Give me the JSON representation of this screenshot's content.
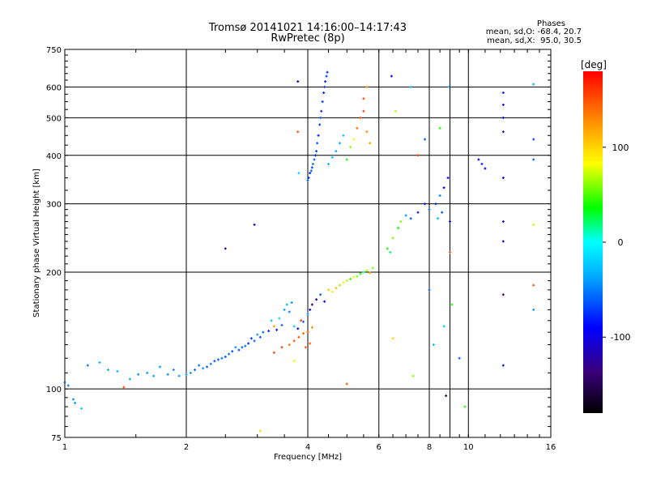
{
  "header": {
    "title_line1": "Tromsø 20141021 14:16:00–14:17:43",
    "title_line2": "RwPretec (8p)"
  },
  "phases": {
    "heading": "Phases",
    "line_o": "mean, sd,O: -68.4, 20.7",
    "line_x": "mean, sd,X:  95.0, 30.5"
  },
  "colorbar": {
    "label": "[deg]",
    "ticks": [
      {
        "label": "100",
        "value": 100
      },
      {
        "label": "0",
        "value": 0
      },
      {
        "label": "-100",
        "value": -100
      }
    ],
    "range": [
      -180,
      180
    ]
  },
  "chart_data": {
    "type": "scatter",
    "title": "Tromsø 20141021 14:16:00–14:17:43",
    "subtitle": "RwPretec (8p)",
    "xlabel": "Frequency [MHz]",
    "ylabel": "Stationary phase Virtual Height [km]",
    "x_scale": "log",
    "y_scale": "log",
    "xlim": [
      1,
      16
    ],
    "ylim": [
      75,
      750
    ],
    "x_ticks": [
      {
        "label": "1",
        "value": 1
      },
      {
        "label": "2",
        "value": 2
      },
      {
        "label": "4",
        "value": 4
      },
      {
        "label": "6",
        "value": 6
      },
      {
        "label": "8",
        "value": 8
      },
      {
        "label": "10",
        "value": 10
      },
      {
        "label": "16",
        "value": 16
      }
    ],
    "y_ticks": [
      {
        "label": "75",
        "value": 75
      },
      {
        "label": "100",
        "value": 100
      },
      {
        "label": "200",
        "value": 200
      },
      {
        "label": "300",
        "value": 300
      },
      {
        "label": "400",
        "value": 400
      },
      {
        "label": "500",
        "value": 500
      },
      {
        "label": "600",
        "value": 600
      },
      {
        "label": "750",
        "value": 750
      }
    ],
    "grid": true,
    "color_by": "phase [deg]",
    "points": [
      [
        1.0,
        104,
        -40
      ],
      [
        1.02,
        102,
        -50
      ],
      [
        1.05,
        94,
        -45
      ],
      [
        1.06,
        92,
        -40
      ],
      [
        1.1,
        89,
        -20
      ],
      [
        1.14,
        115,
        -55
      ],
      [
        1.22,
        117,
        -30
      ],
      [
        1.28,
        112,
        -35
      ],
      [
        1.35,
        111,
        -30
      ],
      [
        1.4,
        101,
        150
      ],
      [
        1.45,
        106,
        -35
      ],
      [
        1.52,
        109,
        -40
      ],
      [
        1.6,
        110,
        -45
      ],
      [
        1.66,
        108,
        -38
      ],
      [
        1.72,
        114,
        -40
      ],
      [
        1.8,
        109,
        -42
      ],
      [
        1.86,
        112,
        -50
      ],
      [
        1.92,
        108,
        -40
      ],
      [
        2.0,
        109,
        -40
      ],
      [
        2.05,
        110,
        -45
      ],
      [
        2.1,
        112,
        -60
      ],
      [
        2.15,
        115,
        -55
      ],
      [
        2.2,
        113,
        -40
      ],
      [
        2.25,
        114,
        -60
      ],
      [
        2.3,
        116,
        -50
      ],
      [
        2.35,
        118,
        -65
      ],
      [
        2.4,
        119,
        -60
      ],
      [
        2.45,
        120,
        -50
      ],
      [
        2.5,
        121,
        -62
      ],
      [
        2.55,
        123,
        -55
      ],
      [
        2.6,
        125,
        -65
      ],
      [
        2.65,
        128,
        -45
      ],
      [
        2.7,
        126,
        -70
      ],
      [
        2.75,
        128,
        -60
      ],
      [
        2.8,
        129,
        -55
      ],
      [
        2.85,
        131,
        -75
      ],
      [
        2.9,
        135,
        -70
      ],
      [
        2.95,
        133,
        -60
      ],
      [
        3.0,
        138,
        -40
      ],
      [
        3.05,
        136,
        -65
      ],
      [
        3.1,
        140,
        -55
      ],
      [
        3.2,
        141,
        -80
      ],
      [
        3.25,
        150,
        -30
      ],
      [
        3.3,
        145,
        120
      ],
      [
        3.35,
        142,
        -100
      ],
      [
        3.4,
        152,
        -20
      ],
      [
        3.45,
        146,
        -60
      ],
      [
        3.5,
        160,
        -40
      ],
      [
        3.55,
        165,
        -30
      ],
      [
        3.6,
        158,
        -50
      ],
      [
        3.65,
        167,
        -45
      ],
      [
        3.7,
        145,
        -20
      ],
      [
        3.78,
        143,
        -100
      ],
      [
        3.85,
        150,
        160
      ],
      [
        3.9,
        149,
        -60
      ],
      [
        4.0,
        156,
        -40
      ],
      [
        4.05,
        160,
        -110
      ],
      [
        4.1,
        165,
        -140
      ],
      [
        4.2,
        170,
        -120
      ],
      [
        4.3,
        175,
        -60
      ],
      [
        4.4,
        168,
        -100
      ],
      [
        4.5,
        180,
        100
      ],
      [
        4.6,
        178,
        90
      ],
      [
        4.7,
        182,
        110
      ],
      [
        4.8,
        185,
        60
      ],
      [
        4.9,
        188,
        90
      ],
      [
        5.0,
        190,
        70
      ],
      [
        5.1,
        192,
        50
      ],
      [
        5.2,
        194,
        80
      ],
      [
        5.3,
        195,
        60
      ],
      [
        5.4,
        198,
        40
      ],
      [
        5.5,
        200,
        20
      ],
      [
        5.6,
        202,
        70
      ],
      [
        5.7,
        199,
        110
      ],
      [
        5.8,
        205,
        60
      ],
      [
        3.3,
        124,
        150
      ],
      [
        3.45,
        128,
        160
      ],
      [
        3.6,
        130,
        140
      ],
      [
        3.7,
        133,
        150
      ],
      [
        3.8,
        136,
        155
      ],
      [
        3.9,
        139,
        140
      ],
      [
        4.0,
        140,
        150
      ],
      [
        4.1,
        144,
        130
      ],
      [
        3.95,
        128,
        150
      ],
      [
        4.05,
        131,
        145
      ],
      [
        4.0,
        345,
        -60
      ],
      [
        4.02,
        350,
        -70
      ],
      [
        4.05,
        360,
        -80
      ],
      [
        4.08,
        365,
        -60
      ],
      [
        4.1,
        372,
        -70
      ],
      [
        4.12,
        380,
        -50
      ],
      [
        4.15,
        390,
        -60
      ],
      [
        4.18,
        400,
        -80
      ],
      [
        4.2,
        410,
        -70
      ],
      [
        4.22,
        430,
        -60
      ],
      [
        4.25,
        450,
        -80
      ],
      [
        4.28,
        480,
        -70
      ],
      [
        4.3,
        500,
        -60
      ],
      [
        4.32,
        520,
        -80
      ],
      [
        4.35,
        550,
        -70
      ],
      [
        4.38,
        580,
        -80
      ],
      [
        4.4,
        600,
        -70
      ],
      [
        4.42,
        620,
        -80
      ],
      [
        4.45,
        640,
        -70
      ],
      [
        4.47,
        655,
        -80
      ],
      [
        4.5,
        380,
        -30
      ],
      [
        4.6,
        395,
        -20
      ],
      [
        4.7,
        410,
        -40
      ],
      [
        4.8,
        430,
        -35
      ],
      [
        4.9,
        450,
        -25
      ],
      [
        5.0,
        390,
        40
      ],
      [
        5.1,
        420,
        60
      ],
      [
        5.2,
        440,
        80
      ],
      [
        5.3,
        470,
        140
      ],
      [
        5.4,
        500,
        150
      ],
      [
        5.5,
        520,
        160
      ],
      [
        5.6,
        460,
        130
      ],
      [
        5.7,
        430,
        120
      ],
      [
        5.5,
        560,
        150
      ],
      [
        5.6,
        600,
        130
      ],
      [
        6.3,
        230,
        40
      ],
      [
        6.5,
        245,
        60
      ],
      [
        6.7,
        260,
        40
      ],
      [
        6.4,
        225,
        20
      ],
      [
        6.8,
        270,
        60
      ],
      [
        7.0,
        280,
        -40
      ],
      [
        7.2,
        275,
        -60
      ],
      [
        7.5,
        285,
        -80
      ],
      [
        7.8,
        300,
        -100
      ],
      [
        8.0,
        290,
        -60
      ],
      [
        8.3,
        300,
        -80
      ],
      [
        8.5,
        315,
        -50
      ],
      [
        8.7,
        330,
        -100
      ],
      [
        8.9,
        350,
        -90
      ],
      [
        9.0,
        270,
        -100
      ],
      [
        8.4,
        275,
        -30
      ],
      [
        8.6,
        285,
        -60
      ],
      [
        10.6,
        390,
        -110
      ],
      [
        10.8,
        380,
        -80
      ],
      [
        11.0,
        370,
        -100
      ],
      [
        12.2,
        500,
        -100
      ],
      [
        12.2,
        540,
        -110
      ],
      [
        12.2,
        580,
        -80
      ],
      [
        12.2,
        460,
        -120
      ],
      [
        12.2,
        350,
        -100
      ],
      [
        12.2,
        270,
        -120
      ],
      [
        12.2,
        240,
        -110
      ],
      [
        12.2,
        175,
        -130
      ],
      [
        12.2,
        115,
        -100
      ],
      [
        14.5,
        610,
        -30
      ],
      [
        14.5,
        440,
        -70
      ],
      [
        14.5,
        390,
        -60
      ],
      [
        14.5,
        265,
        70
      ],
      [
        14.5,
        185,
        150
      ],
      [
        14.5,
        160,
        -40
      ],
      [
        3.78,
        620,
        -100
      ],
      [
        3.78,
        460,
        150
      ],
      [
        3.8,
        360,
        -20
      ],
      [
        6.45,
        640,
        -100
      ],
      [
        6.6,
        520,
        70
      ],
      [
        7.2,
        600,
        -30
      ],
      [
        7.5,
        400,
        160
      ],
      [
        7.8,
        440,
        -60
      ],
      [
        8.0,
        180,
        -60
      ],
      [
        8.2,
        130,
        -30
      ],
      [
        8.5,
        470,
        40
      ],
      [
        8.7,
        145,
        -20
      ],
      [
        8.95,
        600,
        -30
      ],
      [
        9.0,
        225,
        150
      ],
      [
        9.1,
        165,
        40
      ],
      [
        9.5,
        120,
        -60
      ],
      [
        9.8,
        90,
        40
      ],
      [
        3.7,
        118,
        80
      ],
      [
        3.05,
        78,
        100
      ],
      [
        2.95,
        265,
        -100
      ],
      [
        2.5,
        230,
        -140
      ],
      [
        5.0,
        103,
        150
      ],
      [
        8.8,
        96,
        -150
      ],
      [
        6.5,
        135,
        100
      ],
      [
        7.3,
        108,
        60
      ]
    ]
  }
}
